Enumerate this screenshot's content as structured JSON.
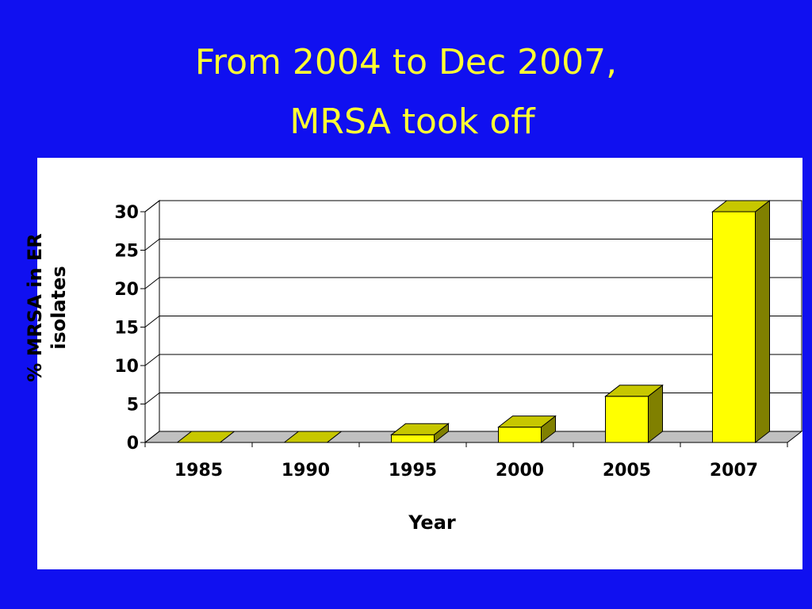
{
  "chart_data": {
    "type": "bar3d",
    "title": [
      "From 2004 to Dec 2007,",
      "MRSA took off"
    ],
    "xlabel": "Year",
    "ylabel": [
      "% MRSA in ER",
      "isolates"
    ],
    "categories": [
      "1985",
      "1990",
      "1995",
      "2000",
      "2005",
      "2007"
    ],
    "values": [
      0,
      0,
      1,
      2,
      6,
      30
    ],
    "color": "#ffff00",
    "ylim": [
      0,
      30
    ],
    "yticks": [
      0,
      5,
      10,
      15,
      20,
      25,
      30
    ],
    "grid": true
  }
}
